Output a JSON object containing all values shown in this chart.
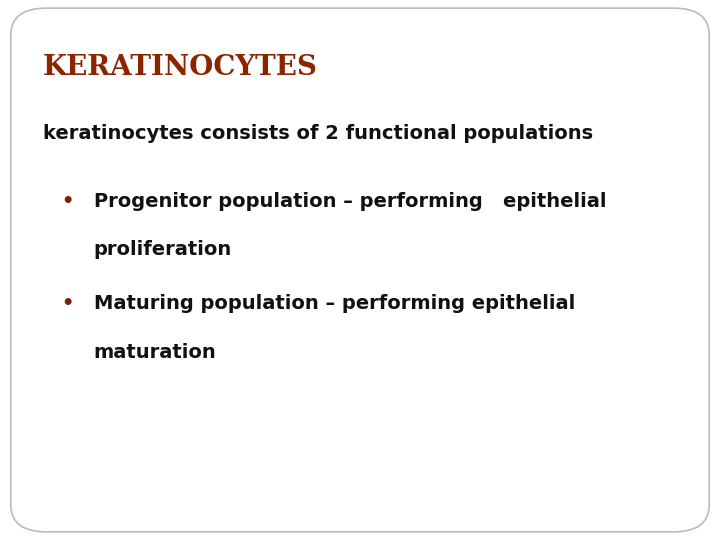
{
  "title": "KERATINOCYTES",
  "title_color": "#8B2500",
  "title_fontsize": 20,
  "subtitle": "keratinocytes consists of 2 functional populations",
  "subtitle_fontsize": 14,
  "subtitle_color": "#111111",
  "bullet_dot_color": "#7B2000",
  "bullet_color": "#111111",
  "bullet_fontsize": 14,
  "bullets": [
    {
      "line1": "Progenitor population – performing   epithelial",
      "line2": "proliferation"
    },
    {
      "line1": "Maturing population – performing epithelial",
      "line2": "maturation"
    }
  ],
  "background_color": "#ffffff",
  "border_color": "#bbbbbb",
  "fig_width": 7.2,
  "fig_height": 5.4
}
